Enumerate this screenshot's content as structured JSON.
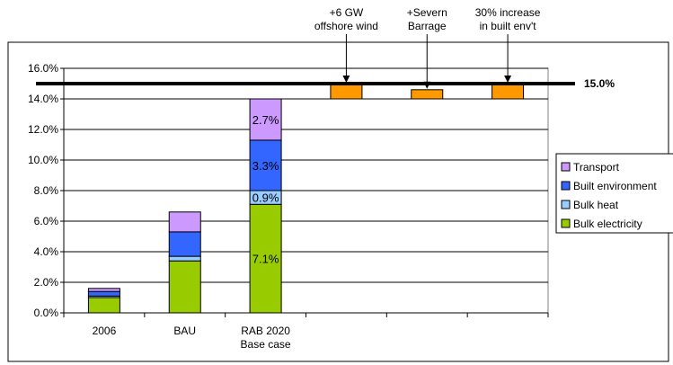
{
  "chart_data": {
    "type": "bar",
    "stacked": true,
    "categories": [
      "2006",
      "BAU",
      "RAB 2020\nBase case",
      "",
      "",
      ""
    ],
    "ylim": [
      0,
      16
    ],
    "y_ticks": [
      "0.0%",
      "2.0%",
      "4.0%",
      "6.0%",
      "8.0%",
      "10.0%",
      "12.0%",
      "14.0%",
      "16.0%"
    ],
    "grid": true,
    "legend_position": "right",
    "series": [
      {
        "name": "Bulk electricity",
        "color": "#99cc00",
        "values": [
          1.0,
          3.4,
          7.1,
          0,
          0,
          0
        ]
      },
      {
        "name": "Bulk heat",
        "color": "#99ccff",
        "values": [
          0.1,
          0.3,
          0.9,
          0,
          0,
          0
        ]
      },
      {
        "name": "Built environment",
        "color": "#3366ff",
        "values": [
          0.3,
          1.6,
          3.3,
          0,
          0,
          0
        ]
      },
      {
        "name": "Transport",
        "color": "#cc99ff",
        "values": [
          0.2,
          1.3,
          2.7,
          0,
          0,
          0
        ]
      }
    ],
    "data_labels": [
      {
        "category_index": 2,
        "series_index": 0,
        "text": "7.1%"
      },
      {
        "category_index": 2,
        "series_index": 1,
        "text": "0.9%"
      },
      {
        "category_index": 2,
        "series_index": 2,
        "text": "3.3%"
      },
      {
        "category_index": 2,
        "series_index": 3,
        "text": "2.7%"
      }
    ],
    "additions": [
      {
        "category_index": 3,
        "from": 14.0,
        "to": 15.0,
        "label": [
          "+6 GW",
          "offshore wind"
        ],
        "color": "#ff9900"
      },
      {
        "category_index": 4,
        "from": 14.0,
        "to": 14.6,
        "label": [
          "+Severn",
          "Barrage"
        ],
        "color": "#ff9900"
      },
      {
        "category_index": 5,
        "from": 14.0,
        "to": 15.0,
        "label": [
          "30% increase",
          "in built env't"
        ],
        "color": "#ff9900"
      }
    ],
    "target": {
      "value": 15.0,
      "label": "15.0%"
    },
    "legend_entries": [
      "Transport",
      "Built environment",
      "Bulk heat",
      "Bulk electricity"
    ]
  }
}
